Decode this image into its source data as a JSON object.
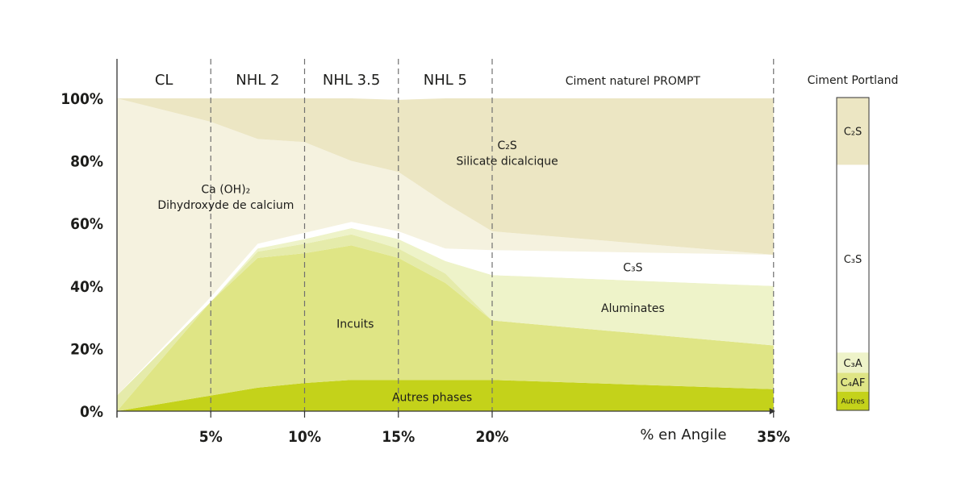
{
  "chart_data": {
    "type": "area",
    "xlabel": "% en Angile",
    "xlim": [
      0,
      35
    ],
    "ylim": [
      0,
      100
    ],
    "y_ticks": [
      "0%",
      "20%",
      "40%",
      "60%",
      "80%",
      "100%"
    ],
    "x_ticks": [
      {
        "value": 5,
        "label": "5%"
      },
      {
        "value": 10,
        "label": "10%"
      },
      {
        "value": 15,
        "label": "15%"
      },
      {
        "value": 20,
        "label": "20%"
      },
      {
        "value": 35,
        "label": "35%"
      }
    ],
    "categories": [
      {
        "label": "CL",
        "from": 0,
        "to": 5
      },
      {
        "label": "NHL 2",
        "from": 5,
        "to": 10
      },
      {
        "label": "NHL 3.5",
        "from": 10,
        "to": 15
      },
      {
        "label": "NHL 5",
        "from": 15,
        "to": 20
      },
      {
        "label": "Ciment naturel PROMPT",
        "from": 20,
        "to": 35
      }
    ],
    "boundaries": [
      0,
      5,
      10,
      15,
      20,
      35
    ],
    "colors": {
      "c2s": "#ece6c3",
      "caoh": "#f5f2df",
      "c3s": "#ffffff",
      "aluminates": "#eef3c9",
      "inc_light": "#e5ebaa",
      "incuits": "#dfe585",
      "autres": "#c4d21a",
      "grid": "#707070",
      "axis": "#333333"
    },
    "x": [
      0,
      5,
      7.5,
      10,
      12.5,
      15,
      17.5,
      20,
      35
    ],
    "series": [
      {
        "key": "autres",
        "values": [
          0,
          5,
          7.5,
          9,
          10,
          10,
          10,
          10,
          7
        ]
      },
      {
        "key": "incuits",
        "values": [
          0,
          30,
          41.5,
          41.5,
          43,
          39,
          31,
          19,
          14
        ]
      },
      {
        "key": "inc_light",
        "values": [
          5,
          0,
          2,
          3,
          3.5,
          3,
          3,
          0,
          0
        ]
      },
      {
        "key": "aluminates",
        "values": [
          0,
          0,
          1,
          1.5,
          2,
          3,
          4,
          14.5,
          19
        ]
      },
      {
        "key": "c3s",
        "values": [
          0,
          1.5,
          1.5,
          2,
          2,
          2.5,
          4,
          8,
          10
        ]
      },
      {
        "key": "caoh",
        "values": [
          95,
          56,
          33.5,
          29,
          19.5,
          19,
          14.5,
          6,
          0
        ]
      },
      {
        "key": "c2s",
        "values": [
          0,
          7.5,
          13,
          14,
          20,
          23,
          33.5,
          42.5,
          50
        ]
      }
    ],
    "labels": [
      {
        "key": "c2s_formula",
        "text": "C₂S",
        "x": 20.8,
        "y": 85
      },
      {
        "key": "c2s_name",
        "text": "Silicate dicalcique",
        "x": 20.8,
        "y": 80
      },
      {
        "key": "caoh_formula",
        "text": "Ca (OH)₂",
        "x": 5.8,
        "y": 71
      },
      {
        "key": "caoh_name",
        "text": "Dihydroxyde de calcium",
        "x": 5.8,
        "y": 66
      },
      {
        "key": "c3s",
        "text": "C₃S",
        "x": 27.5,
        "y": 46
      },
      {
        "key": "aluminates",
        "text": "Aluminates",
        "x": 27.5,
        "y": 33
      },
      {
        "key": "incuits",
        "text": "Incuits",
        "x": 12.7,
        "y": 28
      },
      {
        "key": "autres",
        "text": "Autres phases",
        "x": 16.8,
        "y": 4.5
      }
    ],
    "portland": {
      "title": "Ciment Portland",
      "segments": [
        {
          "key": "autres",
          "label": "Autres",
          "value": 6
        },
        {
          "key": "c4af",
          "label": "C₄AF",
          "value": 6
        },
        {
          "key": "c3a",
          "label": "C₃A",
          "value": 6.5
        },
        {
          "key": "c3s",
          "label": "C₃S",
          "value": 60
        },
        {
          "key": "c2s",
          "label": "C₂S",
          "value": 21.5
        }
      ],
      "colors": {
        "autres": "#c4d21a",
        "c4af": "#dfe585",
        "c3a": "#eef3c9",
        "c3s": "#ffffff",
        "c2s": "#ece6c3"
      }
    }
  }
}
